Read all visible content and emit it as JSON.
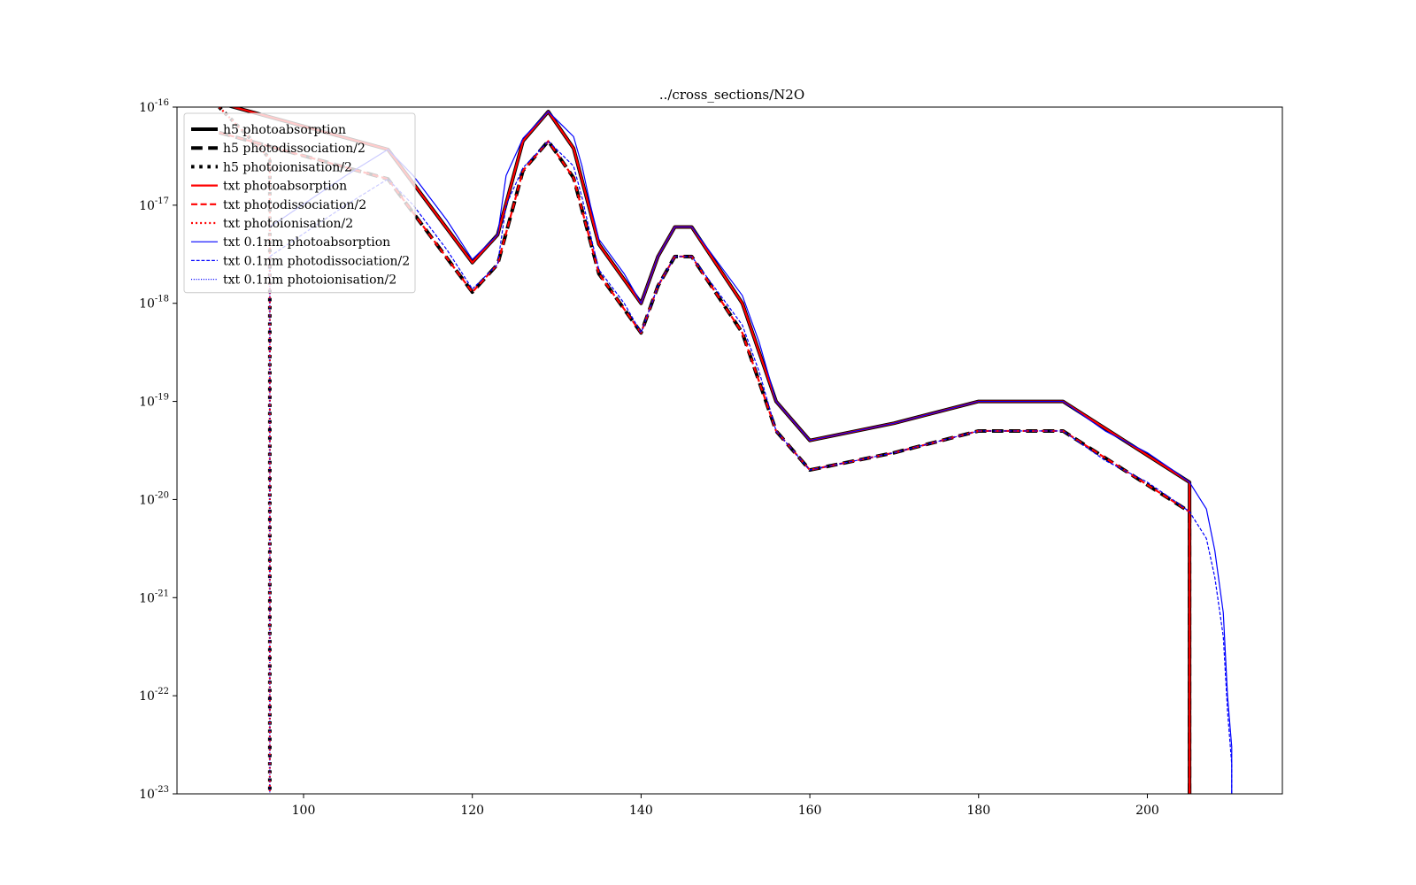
{
  "chart_data": {
    "type": "line",
    "title": "../cross_sections/N2O",
    "xlabel": "",
    "ylabel": "",
    "xlim": [
      85,
      216
    ],
    "ylim": [
      1e-23,
      1e-16
    ],
    "yscale": "log",
    "grid": false,
    "legend_position": "top-left",
    "x_ticks": [
      "100",
      "120",
      "140",
      "160",
      "180",
      "200"
    ],
    "y_ticks": [
      {
        "base": "10",
        "exp": "-16"
      },
      {
        "base": "10",
        "exp": "-17"
      },
      {
        "base": "10",
        "exp": "-18"
      },
      {
        "base": "10",
        "exp": "-19"
      },
      {
        "base": "10",
        "exp": "-20"
      },
      {
        "base": "10",
        "exp": "-21"
      },
      {
        "base": "10",
        "exp": "-22"
      },
      {
        "base": "10",
        "exp": "-23"
      }
    ],
    "series": [
      {
        "name": "h5 photoabsorption",
        "color": "#000000",
        "style": "solid",
        "width": 4,
        "x": [
          90,
          110,
          120,
          123,
          126,
          129,
          132,
          135,
          140,
          142,
          144,
          146,
          152,
          156,
          160,
          170,
          180,
          190,
          205,
          205
        ],
        "y": [
          1.1e-16,
          3.7e-17,
          2.6e-18,
          5e-18,
          4.5e-17,
          9e-17,
          3.8e-17,
          4e-18,
          1e-18,
          3e-18,
          6e-18,
          6e-18,
          1e-18,
          1e-19,
          4e-20,
          6e-20,
          1e-19,
          1e-19,
          1.5e-20,
          1e-23
        ]
      },
      {
        "name": "h5 photodissociation/2",
        "color": "#000000",
        "style": "dashed",
        "width": 4,
        "x": [
          90,
          110,
          120,
          123,
          126,
          129,
          132,
          135,
          140,
          142,
          144,
          146,
          152,
          156,
          160,
          170,
          180,
          190,
          205,
          205
        ],
        "y": [
          5.5e-17,
          1.85e-17,
          1.3e-18,
          2.5e-18,
          2.25e-17,
          4.5e-17,
          1.9e-17,
          2e-18,
          5e-19,
          1.5e-18,
          3e-18,
          3e-18,
          5e-19,
          5e-20,
          2e-20,
          3e-20,
          5e-20,
          5e-20,
          7.5e-21,
          1e-23
        ]
      },
      {
        "name": "h5 photoionisation/2",
        "color": "#000000",
        "style": "dotted",
        "width": 4,
        "x": [
          90,
          96,
          96
        ],
        "y": [
          1e-16,
          3e-17,
          1e-23
        ]
      },
      {
        "name": "txt photoabsorption",
        "color": "#ff0000",
        "style": "solid",
        "width": 2.2,
        "x": [
          90,
          110,
          120,
          123,
          126,
          129,
          132,
          135,
          140,
          142,
          144,
          146,
          152,
          156,
          160,
          170,
          180,
          190,
          205,
          205
        ],
        "y": [
          1.1e-16,
          3.7e-17,
          2.6e-18,
          5e-18,
          4.5e-17,
          9e-17,
          3.8e-17,
          4e-18,
          1e-18,
          3e-18,
          6e-18,
          6e-18,
          1e-18,
          1e-19,
          4e-20,
          6e-20,
          1e-19,
          1e-19,
          1.5e-20,
          1e-23
        ]
      },
      {
        "name": "txt photodissociation/2",
        "color": "#ff0000",
        "style": "dashed",
        "width": 2.2,
        "x": [
          90,
          110,
          120,
          123,
          126,
          129,
          132,
          135,
          140,
          142,
          144,
          146,
          152,
          156,
          160,
          170,
          180,
          190,
          205,
          205
        ],
        "y": [
          5.5e-17,
          1.85e-17,
          1.3e-18,
          2.5e-18,
          2.25e-17,
          4.5e-17,
          1.9e-17,
          2e-18,
          5e-19,
          1.5e-18,
          3e-18,
          3e-18,
          5e-19,
          5e-20,
          2e-20,
          3e-20,
          5e-20,
          5e-20,
          7.5e-21,
          1e-23
        ]
      },
      {
        "name": "txt photoionisation/2",
        "color": "#ff0000",
        "style": "dotted",
        "width": 2.2,
        "x": [
          90,
          96,
          96
        ],
        "y": [
          1e-16,
          3e-17,
          1e-23
        ]
      },
      {
        "name": "txt 0.1nm photoabsorption",
        "color": "#0000ff",
        "style": "solid",
        "width": 1.2,
        "x": [
          96,
          105,
          110,
          113,
          117,
          120,
          123,
          124,
          126,
          129,
          132,
          133,
          134,
          135,
          138,
          140,
          142,
          144,
          146,
          152,
          154,
          156,
          160,
          170,
          180,
          190,
          195,
          200,
          203,
          205,
          207,
          208,
          209,
          209.5,
          210,
          210
        ],
        "y": [
          6e-18,
          2e-17,
          3.7e-17,
          2e-17,
          7e-18,
          2.8e-18,
          5e-18,
          2e-17,
          4.8e-17,
          9e-17,
          5e-17,
          2.5e-17,
          1e-17,
          4.5e-18,
          2e-18,
          1e-18,
          3e-18,
          6e-18,
          6e-18,
          1.2e-18,
          4e-19,
          1e-19,
          4e-20,
          6e-20,
          1e-19,
          1e-19,
          5e-20,
          3e-20,
          2e-20,
          1.5e-20,
          8e-21,
          3e-21,
          7e-22,
          1e-22,
          3e-23,
          1e-23
        ]
      },
      {
        "name": "txt 0.1nm photodissociation/2",
        "color": "#0000ff",
        "style": "dashed",
        "width": 1.2,
        "x": [
          96,
          105,
          110,
          113,
          117,
          120,
          123,
          124,
          126,
          129,
          132,
          133,
          134,
          135,
          138,
          140,
          142,
          144,
          146,
          152,
          154,
          156,
          160,
          170,
          180,
          190,
          195,
          200,
          203,
          205,
          207,
          208,
          209,
          209.5,
          210,
          210
        ],
        "y": [
          3e-18,
          1e-17,
          1.85e-17,
          1e-17,
          3.5e-18,
          1.4e-18,
          2.5e-18,
          1e-17,
          2.4e-17,
          4.5e-17,
          2.5e-17,
          1.2e-17,
          5e-18,
          2.2e-18,
          1e-18,
          5e-19,
          1.5e-18,
          3e-18,
          3e-18,
          6e-19,
          2e-19,
          5e-20,
          2e-20,
          3e-20,
          5e-20,
          5e-20,
          2.5e-20,
          1.5e-20,
          1e-20,
          7.5e-21,
          4e-21,
          1.6e-21,
          4e-22,
          7e-23,
          2e-23,
          1e-23
        ]
      },
      {
        "name": "txt 0.1nm photoionisation/2",
        "color": "#0000ff",
        "style": "dotted",
        "width": 1.2,
        "x": [
          96,
          96
        ],
        "y": [
          3e-18,
          1e-23
        ]
      }
    ]
  }
}
